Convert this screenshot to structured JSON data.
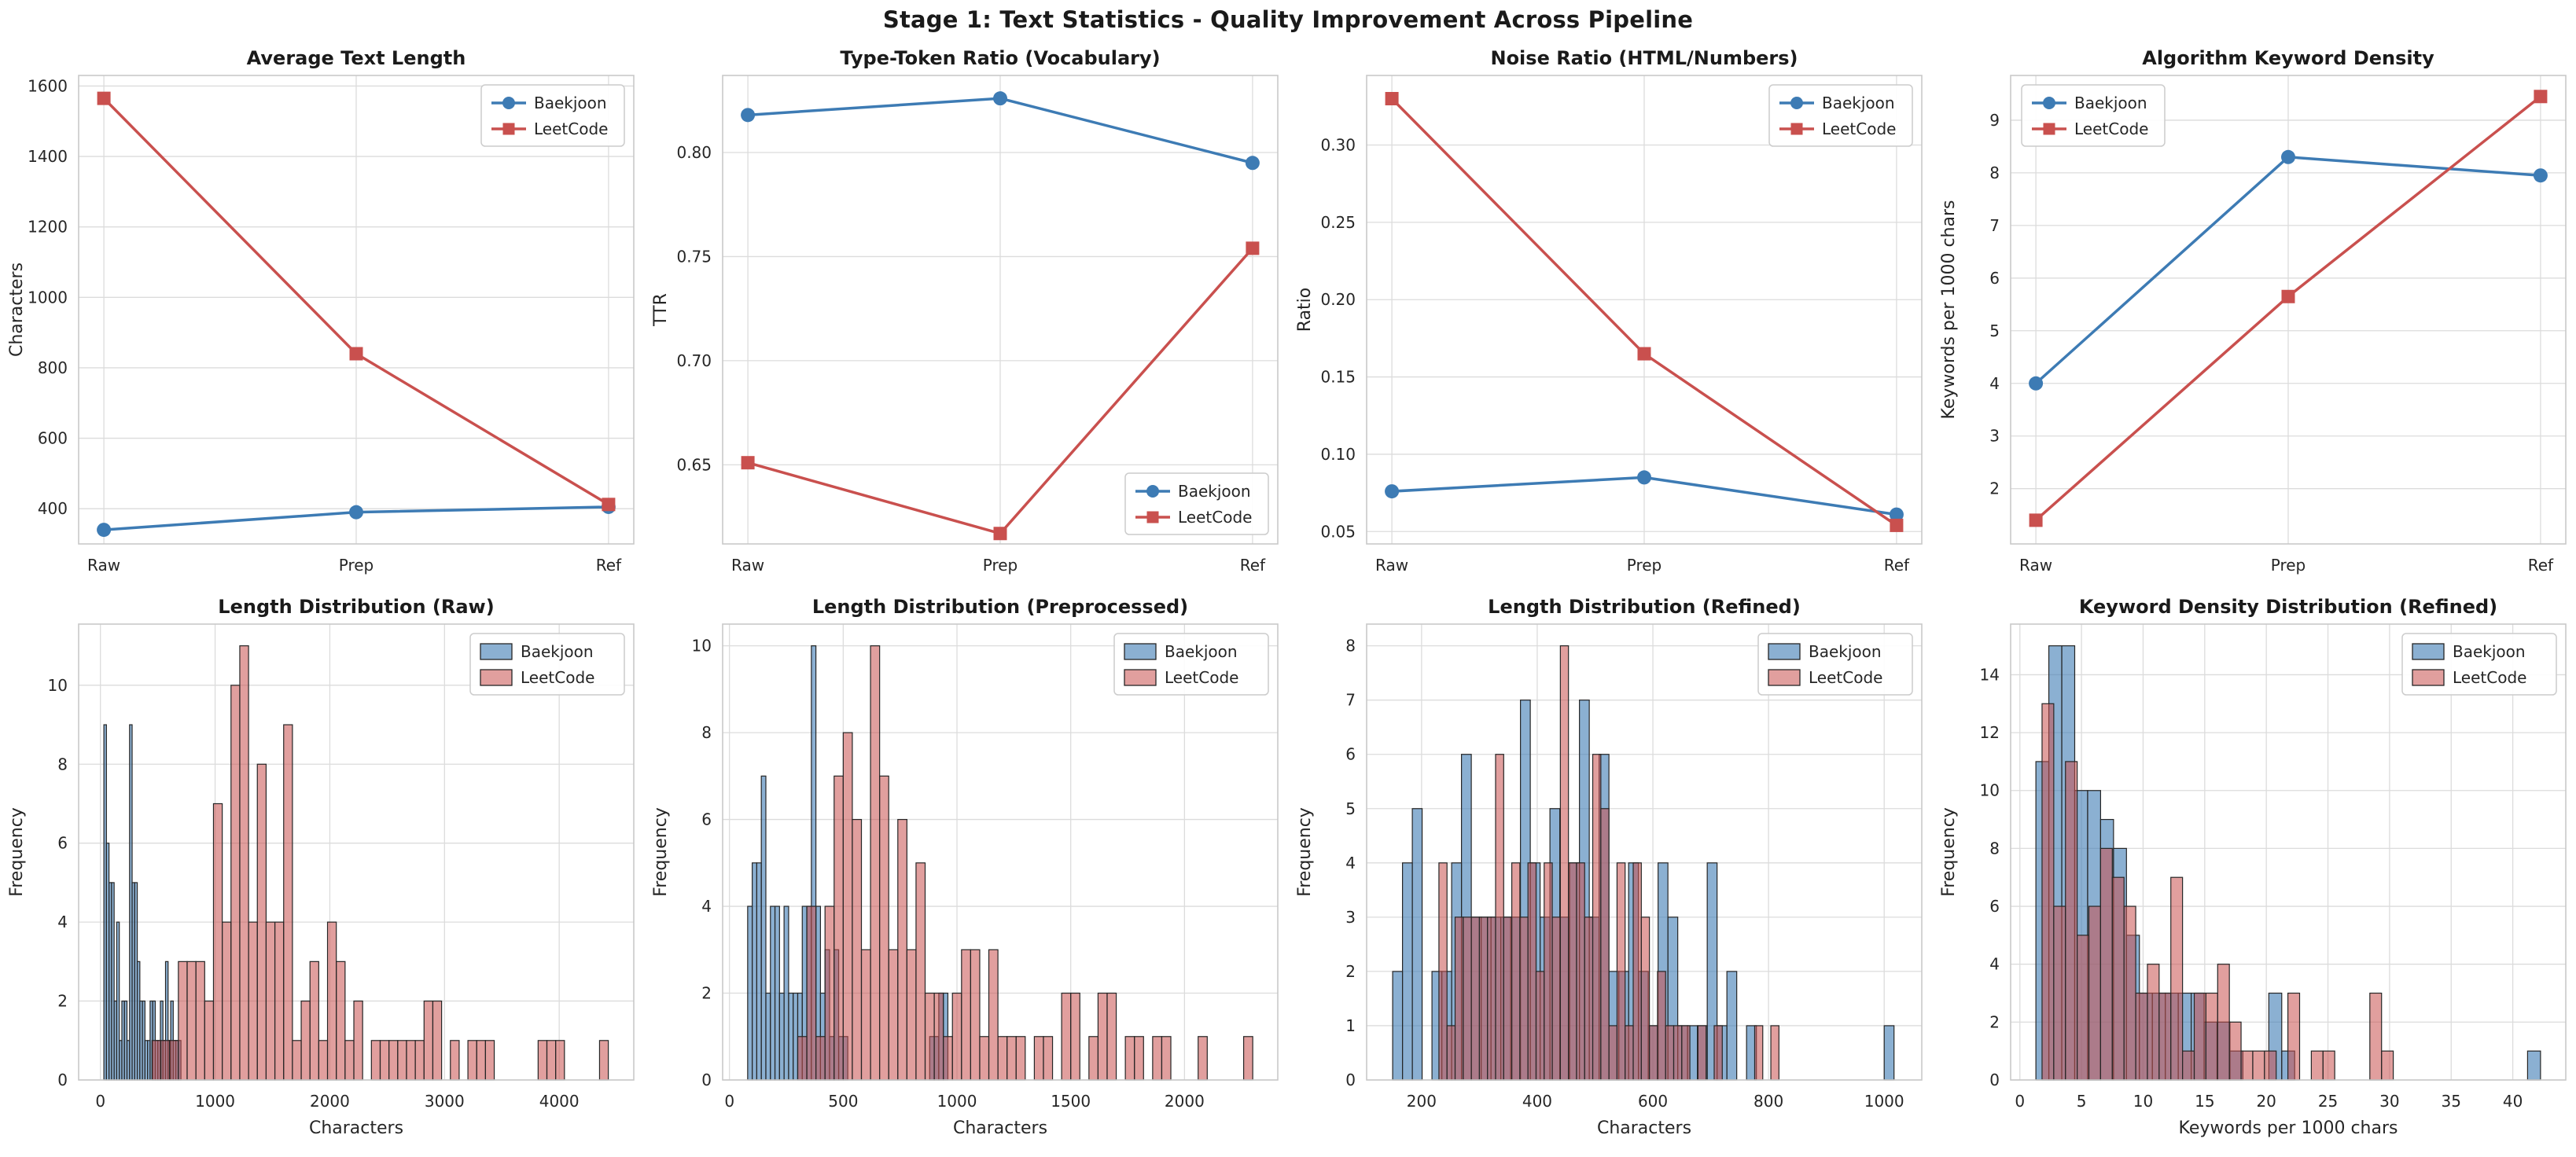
{
  "title": "Stage 1: Text Statistics - Quality Improvement Across Pipeline",
  "legend_labels": [
    "Baekjoon",
    "LeetCode"
  ],
  "colors": {
    "baekjoon_line": "#3d7bb4",
    "leetcode_line": "#c9504e",
    "baekjoon_hist_fill": "rgba(61,123,180,0.6)",
    "leetcode_hist_fill": "rgba(201,80,78,0.55)",
    "bar_edge": "#262626",
    "grid": "#dcdcdc",
    "spine": "#c9c9c9",
    "text": "#262626",
    "title_text": "#1a1a1a"
  },
  "chart_data": [
    {
      "type": "line",
      "title": "Average Text Length",
      "ylabel": "Characters",
      "xlabel": "",
      "categories": [
        "Raw",
        "Prep",
        "Ref"
      ],
      "yticks": [
        "400",
        "600",
        "800",
        "1000",
        "1200",
        "1400",
        "1600"
      ],
      "ylim": [
        300,
        1630
      ],
      "legend_pos": "top-right",
      "series": [
        {
          "name": "Baekjoon",
          "color": "baekjoon",
          "marker": "circle",
          "values": [
            340,
            390,
            405
          ]
        },
        {
          "name": "LeetCode",
          "color": "leetcode",
          "marker": "square",
          "values": [
            1565,
            840,
            412
          ]
        }
      ]
    },
    {
      "type": "line",
      "title": "Type-Token Ratio (Vocabulary)",
      "ylabel": "TTR",
      "xlabel": "",
      "categories": [
        "Raw",
        "Prep",
        "Ref"
      ],
      "yticks": [
        "0.65",
        "0.70",
        "0.75",
        "0.80"
      ],
      "ylim": [
        0.612,
        0.837
      ],
      "legend_pos": "bottom-right",
      "series": [
        {
          "name": "Baekjoon",
          "color": "baekjoon",
          "marker": "circle",
          "values": [
            0.818,
            0.826,
            0.795
          ]
        },
        {
          "name": "LeetCode",
          "color": "leetcode",
          "marker": "square",
          "values": [
            0.651,
            0.617,
            0.754
          ]
        }
      ]
    },
    {
      "type": "line",
      "title": "Noise Ratio (HTML/Numbers)",
      "ylabel": "Ratio",
      "xlabel": "",
      "categories": [
        "Raw",
        "Prep",
        "Ref"
      ],
      "yticks": [
        "0.05",
        "0.10",
        "0.15",
        "0.20",
        "0.25",
        "0.30"
      ],
      "ylim": [
        0.042,
        0.345
      ],
      "legend_pos": "top-right",
      "series": [
        {
          "name": "Baekjoon",
          "color": "baekjoon",
          "marker": "circle",
          "values": [
            0.076,
            0.085,
            0.061
          ]
        },
        {
          "name": "LeetCode",
          "color": "leetcode",
          "marker": "square",
          "values": [
            0.33,
            0.165,
            0.054
          ]
        }
      ]
    },
    {
      "type": "line",
      "title": "Algorithm Keyword Density",
      "ylabel": "Keywords per 1000 chars",
      "xlabel": "",
      "categories": [
        "Raw",
        "Prep",
        "Ref"
      ],
      "yticks": [
        "2",
        "3",
        "4",
        "5",
        "6",
        "7",
        "8",
        "9"
      ],
      "ylim": [
        0.95,
        9.85
      ],
      "legend_pos": "top-left",
      "series": [
        {
          "name": "Baekjoon",
          "color": "baekjoon",
          "marker": "circle",
          "values": [
            4.0,
            8.3,
            7.95
          ]
        },
        {
          "name": "LeetCode",
          "color": "leetcode",
          "marker": "square",
          "values": [
            1.4,
            5.65,
            9.45
          ]
        }
      ]
    },
    {
      "type": "bar",
      "subtype": "histogram",
      "title": "Length Distribution (Raw)",
      "ylabel": "Frequency",
      "xlabel": "Characters",
      "xticks": [
        "0",
        "1000",
        "2000",
        "3000",
        "4000"
      ],
      "xlim": [
        -190,
        4650
      ],
      "yticks": [
        "0",
        "2",
        "4",
        "6",
        "8",
        "10"
      ],
      "ylim": [
        0,
        11.55
      ],
      "legend_pos": "top-right",
      "series": [
        {
          "name": "Baekjoon",
          "color": "baekjoon",
          "bin_start": 30,
          "bin_width": 22.4,
          "counts": [
            9,
            6,
            5,
            5,
            2,
            4,
            1,
            2,
            2,
            1,
            9,
            5,
            5,
            3,
            2,
            2,
            1,
            1,
            2,
            2,
            1,
            1,
            2,
            1,
            3,
            1,
            2,
            1,
            1,
            1
          ]
        },
        {
          "name": "LeetCode",
          "color": "leetcode",
          "bin_start": 450,
          "bin_width": 76.5,
          "counts": [
            1,
            1,
            1,
            3,
            3,
            3,
            2,
            7,
            4,
            10,
            11,
            4,
            8,
            4,
            4,
            9,
            1,
            2,
            3,
            1,
            4,
            3,
            1,
            2,
            0,
            1,
            1,
            1,
            1,
            1,
            1,
            2,
            2,
            0,
            1,
            0,
            1,
            1,
            1,
            0,
            0,
            0,
            0,
            0,
            1,
            1,
            1,
            0,
            0,
            0,
            0,
            1
          ]
        }
      ]
    },
    {
      "type": "bar",
      "subtype": "histogram",
      "title": "Length Distribution (Preprocessed)",
      "ylabel": "Frequency",
      "xlabel": "Characters",
      "xticks": [
        "0",
        "500",
        "1000",
        "1500",
        "2000"
      ],
      "xlim": [
        -30,
        2410
      ],
      "yticks": [
        "0",
        "2",
        "4",
        "6",
        "8",
        "10"
      ],
      "ylim": [
        0,
        10.5
      ],
      "legend_pos": "top-right",
      "series": [
        {
          "name": "Baekjoon",
          "color": "baekjoon",
          "bin_start": 80,
          "bin_width": 20,
          "counts": [
            4,
            5,
            5,
            7,
            2,
            4,
            4,
            2,
            4,
            2,
            2,
            2,
            4,
            4,
            10,
            4,
            2,
            3,
            1,
            3,
            1,
            1,
            0,
            0,
            0,
            0,
            0,
            0,
            0,
            0,
            0,
            0,
            0,
            0,
            0,
            0,
            0,
            0,
            0,
            0,
            1,
            1,
            2,
            2
          ]
        },
        {
          "name": "LeetCode",
          "color": "leetcode",
          "bin_start": 300,
          "bin_width": 40,
          "counts": [
            1,
            4,
            1,
            4,
            7,
            8,
            6,
            3,
            10,
            7,
            3,
            6,
            3,
            5,
            2,
            2,
            1,
            2,
            3,
            3,
            1,
            3,
            1,
            1,
            1,
            0,
            1,
            1,
            0,
            2,
            2,
            0,
            1,
            2,
            2,
            0,
            1,
            1,
            0,
            1,
            1,
            0,
            0,
            0,
            1,
            0,
            0,
            0,
            0,
            1
          ]
        }
      ]
    },
    {
      "type": "bar",
      "subtype": "histogram",
      "title": "Length Distribution (Refined)",
      "ylabel": "Frequency",
      "xlabel": "Characters",
      "xticks": [
        "200",
        "400",
        "600",
        "800",
        "1000"
      ],
      "xlim": [
        105,
        1065
      ],
      "yticks": [
        "0",
        "1",
        "2",
        "3",
        "4",
        "5",
        "6",
        "7",
        "8"
      ],
      "ylim": [
        0,
        8.4
      ],
      "legend_pos": "top-right",
      "series": [
        {
          "name": "Baekjoon",
          "color": "baekjoon",
          "bin_start": 150,
          "bin_width": 17,
          "counts": [
            2,
            4,
            5,
            0,
            2,
            2,
            4,
            6,
            3,
            3,
            3,
            3,
            3,
            7,
            4,
            3,
            5,
            3,
            4,
            7,
            3,
            6,
            2,
            2,
            4,
            2,
            1,
            4,
            3,
            1,
            1,
            1,
            4,
            1,
            2,
            0,
            1,
            0,
            0,
            0,
            0,
            0,
            0,
            0,
            0,
            0,
            0,
            0,
            0,
            0,
            1
          ]
        },
        {
          "name": "LeetCode",
          "color": "leetcode",
          "bin_start": 230,
          "bin_width": 14,
          "counts": [
            4,
            1,
            3,
            3,
            3,
            3,
            3,
            6,
            3,
            4,
            3,
            4,
            2,
            4,
            3,
            8,
            4,
            4,
            3,
            6,
            5,
            1,
            4,
            1,
            4,
            3,
            1,
            2,
            1,
            1,
            1,
            0,
            1,
            0,
            1,
            0,
            0,
            0,
            0,
            1,
            0,
            1
          ]
        }
      ]
    },
    {
      "type": "bar",
      "subtype": "histogram",
      "title": "Keyword Density Distribution (Refined)",
      "ylabel": "Frequency",
      "xlabel": "Keywords per 1000 chars",
      "xticks": [
        "0",
        "5",
        "10",
        "15",
        "20",
        "25",
        "30",
        "35",
        "40"
      ],
      "xlim": [
        -0.75,
        44.3
      ],
      "yticks": [
        "0",
        "2",
        "4",
        "6",
        "8",
        "10",
        "12",
        "14"
      ],
      "ylim": [
        0,
        15.75
      ],
      "legend_pos": "top-right",
      "series": [
        {
          "name": "Baekjoon",
          "color": "baekjoon",
          "bin_start": 1.3,
          "bin_width": 1.05,
          "counts": [
            11,
            15,
            15,
            10,
            10,
            9,
            8,
            5,
            3,
            3,
            3,
            3,
            3,
            2,
            2,
            1,
            0,
            0,
            3,
            1,
            0,
            0,
            0,
            0,
            0,
            0,
            0,
            0,
            0,
            0,
            0,
            0,
            0,
            0,
            0,
            0,
            0,
            0,
            1
          ]
        },
        {
          "name": "LeetCode",
          "color": "leetcode",
          "bin_start": 1.8,
          "bin_width": 0.95,
          "counts": [
            13,
            6,
            11,
            5,
            6,
            8,
            7,
            6,
            3,
            4,
            3,
            7,
            1,
            3,
            3,
            4,
            2,
            1,
            1,
            1,
            0,
            3,
            0,
            1,
            1,
            0,
            0,
            0,
            3,
            1
          ]
        }
      ]
    }
  ]
}
